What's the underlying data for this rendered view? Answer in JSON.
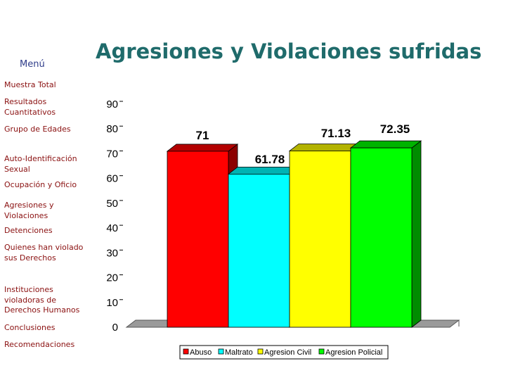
{
  "sidebar": {
    "menu_title": "Menú",
    "items": [
      {
        "label": "Muestra Total"
      },
      {
        "label": "Resultados Cuantitativos"
      },
      {
        "label": "Grupo de Edades"
      },
      {
        "label": "Auto-Identificación Sexual"
      },
      {
        "label": "Ocupación y Oficio"
      },
      {
        "label": "Agresiones y Violaciones"
      },
      {
        "label": "Detenciones"
      },
      {
        "label": "Quienes han violado sus Derechos"
      },
      {
        "label": "Instituciones violadoras de Derechos Humanos"
      },
      {
        "label": "Conclusiones"
      },
      {
        "label": "Recomendaciones"
      }
    ]
  },
  "page_title": "Agresiones y Violaciones sufridas",
  "colors": {
    "title": "#1f6b6b",
    "menu_title": "#2f3d8a",
    "nav": "#8a1010",
    "floor": "#9a9a9a"
  },
  "chart_data": {
    "type": "bar",
    "style": "3d",
    "categories": [
      "Abuso",
      "Maltrato",
      "Agresion Civil",
      "Agresion Policial"
    ],
    "values": [
      71,
      61.78,
      71.13,
      72.35
    ],
    "value_labels": [
      "71",
      "61.78",
      "71.13",
      "72.35"
    ],
    "colors": [
      "#ff0000",
      "#00ffff",
      "#ffff00",
      "#00ff00"
    ],
    "y_ticks": [
      0,
      10,
      20,
      30,
      40,
      50,
      60,
      70,
      80,
      90
    ],
    "ylim": [
      0,
      90
    ],
    "grid": false,
    "legend_position": "bottom"
  }
}
